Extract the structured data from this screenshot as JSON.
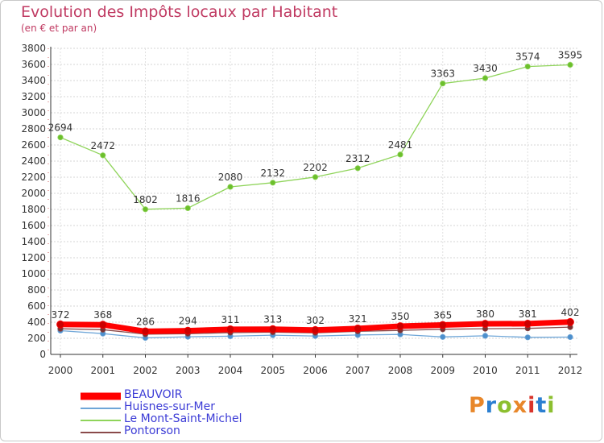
{
  "title": "Evolution des Impôts locaux par Habitant",
  "subtitle": "(en € et par an)",
  "logo": {
    "text": "Proxiti",
    "colors": [
      "#e8872a",
      "#2b7fd1",
      "#8cbf2f",
      "#e8872a",
      "#d9342b",
      "#2b7fd1",
      "#8cbf2f"
    ]
  },
  "chart_data": {
    "type": "line",
    "title": "Evolution des Impôts locaux par Habitant",
    "subtitle": "(en € et par an)",
    "xlabel": "",
    "ylabel": "",
    "ylim": [
      0,
      3800
    ],
    "yticks": [
      "0",
      "200",
      "400",
      "600",
      "800",
      "1000",
      "1200",
      "1400",
      "1600",
      "1800",
      "2000",
      "2200",
      "2400",
      "2600",
      "2800",
      "3000",
      "3200",
      "3400",
      "3600",
      "3800"
    ],
    "grid": true,
    "categories": [
      "2000",
      "2001",
      "2002",
      "2003",
      "2004",
      "2005",
      "2006",
      "2007",
      "2008",
      "2009",
      "2010",
      "2011",
      "2012"
    ],
    "series": [
      {
        "name": "Le Mont-Saint-Michel",
        "color": "#8fd45a",
        "marker": "#6cbf2c",
        "width": 1.3,
        "values": [
          2694,
          2472,
          1802,
          1816,
          2080,
          2132,
          2202,
          2312,
          2481,
          3363,
          3430,
          3574,
          3595
        ],
        "labels": [
          "2694",
          "2472",
          "1802",
          "1816",
          "2080",
          "2132",
          "2202",
          "2312",
          "2481",
          "3363",
          "3430",
          "3574",
          "3595"
        ]
      },
      {
        "name": "Huisnes-sur-Mer",
        "color": "#6ea6d8",
        "marker": "#4d8fcc",
        "width": 1.3,
        "values": [
          295,
          258,
          205,
          219,
          226,
          239,
          228,
          241,
          248,
          217,
          231,
          212,
          215
        ],
        "labels": []
      },
      {
        "name": "Pontorson",
        "color": "#8a4a4a",
        "marker": "#7a3030",
        "width": 1.3,
        "values": [
          318,
          307,
          251,
          257,
          270,
          276,
          268,
          286,
          298,
          312,
          319,
          323,
          339
        ],
        "labels": []
      },
      {
        "name": "BEAUVOIR",
        "color": "#ff0000",
        "marker": "#cc0000",
        "width": 7,
        "values": [
          372,
          368,
          286,
          294,
          311,
          313,
          302,
          321,
          350,
          365,
          380,
          381,
          402
        ],
        "labels": [
          "372",
          "368",
          "286",
          "294",
          "311",
          "313",
          "302",
          "321",
          "350",
          "365",
          "380",
          "381",
          "402"
        ]
      }
    ]
  },
  "legend": [
    {
      "name": "BEAUVOIR",
      "color": "#ff0000",
      "thickness": 9
    },
    {
      "name": "Huisnes-sur-Mer",
      "color": "#6ea6d8",
      "thickness": 2
    },
    {
      "name": "Le Mont-Saint-Michel",
      "color": "#8fd45a",
      "thickness": 2
    },
    {
      "name": "Pontorson",
      "color": "#8a4a4a",
      "thickness": 2
    }
  ]
}
